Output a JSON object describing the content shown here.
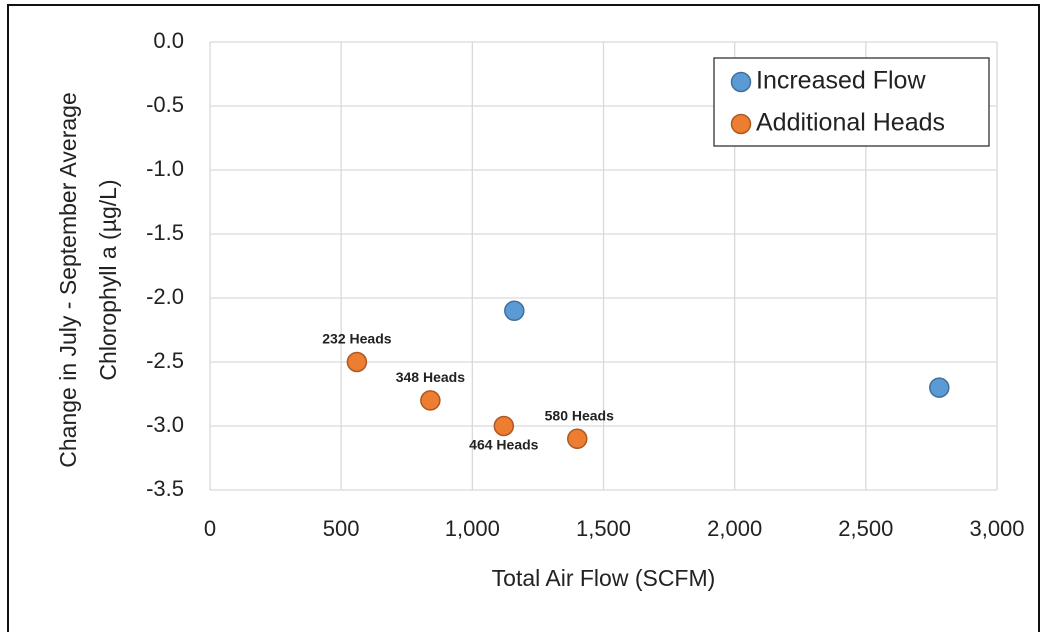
{
  "chart_data": {
    "type": "scatter",
    "xlabel": "Total Air Flow (SCFM)",
    "ylabel": [
      "Change in July - September Average",
      "Chlorophyll a (µg/L)"
    ],
    "xlim": [
      0,
      3000
    ],
    "xticks": [
      0,
      500,
      {
        "value": 1000,
        "label": "1,000"
      },
      {
        "value": 1500,
        "label": "1,500"
      },
      {
        "value": 2000,
        "label": "2,000"
      },
      {
        "value": 2500,
        "label": "2,500"
      },
      {
        "value": 3000,
        "label": "3,000"
      }
    ],
    "ylim": [
      -3.5,
      0
    ],
    "yticks": [
      {
        "value": 0,
        "label": "0.0"
      },
      -0.5,
      {
        "value": -1,
        "label": "-1.0"
      },
      -1.5,
      {
        "value": -2,
        "label": "-2.0"
      },
      -2.5,
      {
        "value": -3,
        "label": "-3.0"
      },
      -3.5
    ],
    "grid": true,
    "legend": "upper right",
    "series": [
      {
        "name": "Increased Flow",
        "color": "#5b9bd5",
        "x": [
          1160,
          2780
        ],
        "values": [
          -2.1,
          -2.7
        ]
      },
      {
        "name": "Additional Heads",
        "color": "#ed7d31",
        "x": [
          560,
          840,
          1120,
          1400
        ],
        "values": [
          -2.5,
          -2.8,
          -3.0,
          -3.1
        ],
        "labels": [
          "232 Heads",
          "348 Heads",
          "464 Heads",
          "580 Heads"
        ]
      }
    ]
  }
}
